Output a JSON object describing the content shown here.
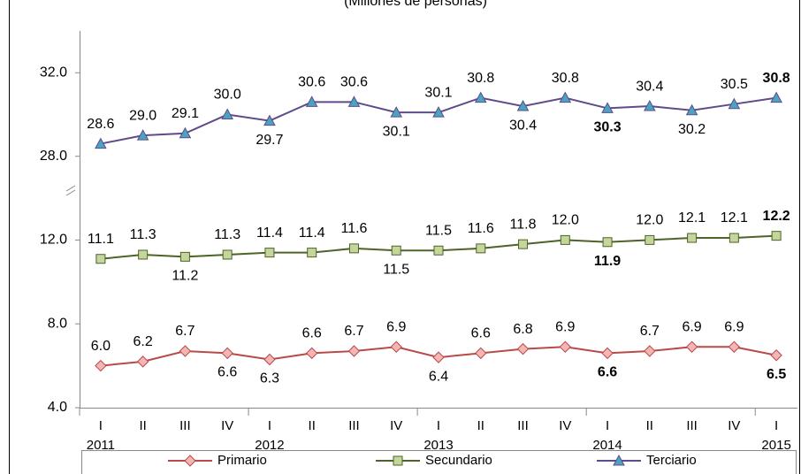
{
  "chart_data": {
    "type": "line",
    "subtitle": "(Millones de personas)",
    "categories": [
      "I",
      "II",
      "III",
      "IV",
      "I",
      "II",
      "III",
      "IV",
      "I",
      "II",
      "III",
      "IV",
      "I",
      "II",
      "III",
      "IV",
      "I"
    ],
    "years": [
      "2011",
      "2012",
      "2013",
      "2014",
      "2015"
    ],
    "ylim": [
      4,
      34
    ],
    "y_break": [
      14,
      26
    ],
    "yticks": [
      {
        "value": 4,
        "label": "4.0"
      },
      {
        "value": 8,
        "label": "8.0"
      },
      {
        "value": 12,
        "label": "12.0"
      },
      {
        "value": 28,
        "label": "28.0"
      },
      {
        "value": 32,
        "label": "32.0"
      }
    ],
    "bold_labels": [
      12,
      16
    ],
    "legend": "bottom",
    "series": [
      {
        "name": "Primario",
        "color": "#b94a48",
        "fill": "#f4b6b4",
        "marker": "diamond",
        "values": [
          6.0,
          6.2,
          6.7,
          6.6,
          6.3,
          6.6,
          6.7,
          6.9,
          6.4,
          6.6,
          6.8,
          6.9,
          6.6,
          6.7,
          6.9,
          6.9,
          6.5
        ],
        "value_labels": [
          "6.0",
          "6.2",
          "6.7",
          "6.6",
          "6.3",
          "6.6",
          "6.7",
          "6.9",
          "6.4",
          "6.6",
          "6.8",
          "6.9",
          "6.6",
          "6.7",
          "6.9",
          "6.9",
          "6.5"
        ]
      },
      {
        "name": "Secundario",
        "color": "#4f6228",
        "fill": "#c3d69b",
        "marker": "square",
        "values": [
          11.1,
          11.3,
          11.2,
          11.3,
          11.4,
          11.4,
          11.6,
          11.5,
          11.5,
          11.6,
          11.8,
          12.0,
          11.9,
          12.0,
          12.1,
          12.1,
          12.2
        ],
        "value_labels": [
          "11.1",
          "11.3",
          "11.2",
          "11.3",
          "11.4",
          "11.4",
          "11.6",
          "11.5",
          "11.5",
          "11.6",
          "11.8",
          "12.0",
          "11.9",
          "12.0",
          "12.1",
          "12.1",
          "12.2"
        ]
      },
      {
        "name": "Terciario",
        "color": "#5f4b8b",
        "fill": "#4aa3c0",
        "marker": "triangle",
        "values": [
          28.6,
          29.0,
          29.1,
          30.0,
          29.7,
          30.6,
          30.6,
          30.1,
          30.1,
          30.8,
          30.4,
          30.8,
          30.3,
          30.4,
          30.2,
          30.5,
          30.8
        ],
        "value_labels": [
          "28.6",
          "29.0",
          "29.1",
          "30.0",
          "29.7",
          "30.6",
          "30.6",
          "30.1",
          "30.1",
          "30.8",
          "30.4",
          "30.8",
          "30.3",
          "30.4",
          "30.2",
          "30.5",
          "30.8"
        ]
      }
    ]
  }
}
